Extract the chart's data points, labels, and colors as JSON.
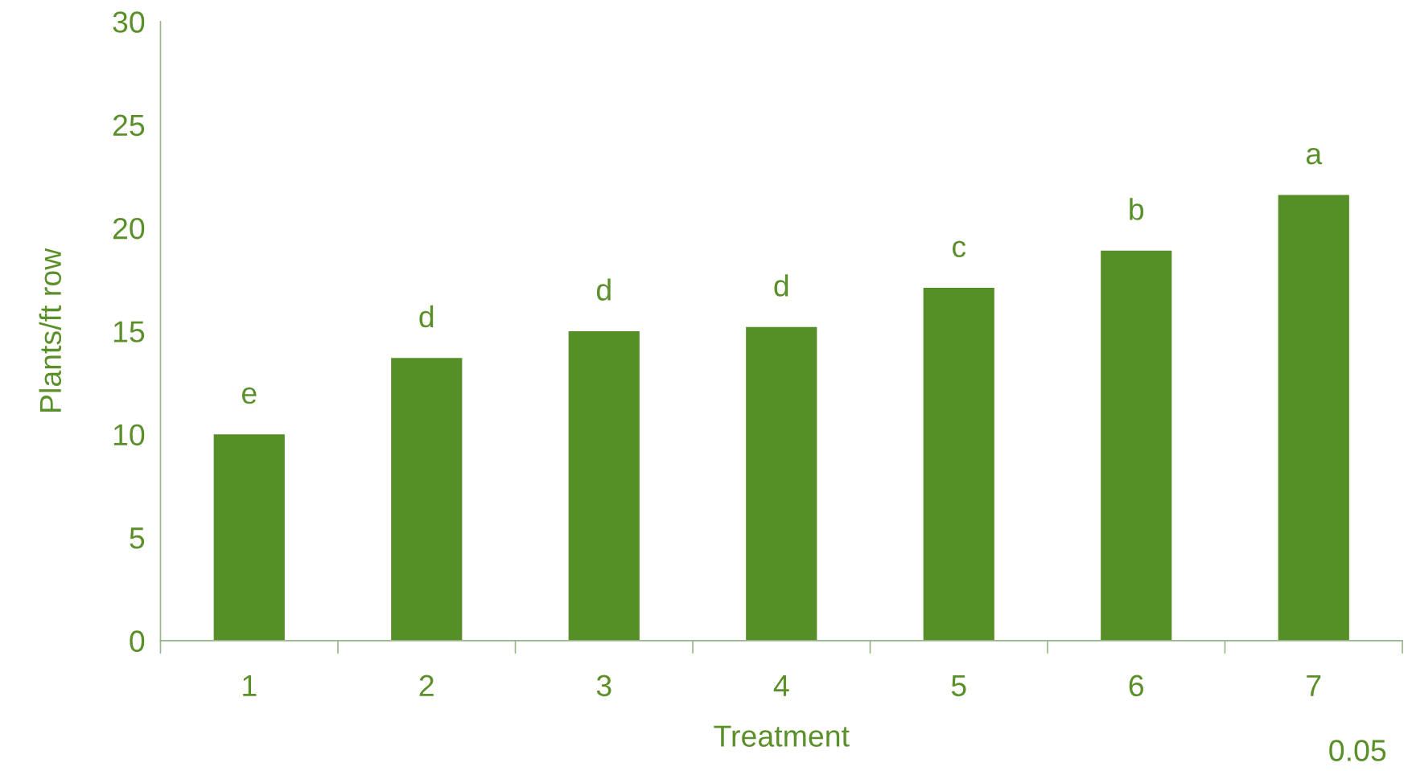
{
  "chart_data": {
    "type": "bar",
    "xlabel": "Treatment",
    "ylabel": "Plants/ft row",
    "categories": [
      "1",
      "2",
      "3",
      "4",
      "5",
      "6",
      "7"
    ],
    "values": [
      10.0,
      13.7,
      15.0,
      15.2,
      17.1,
      18.9,
      21.6
    ],
    "color": "#568f27",
    "ylim": [
      0,
      30
    ],
    "yticks": [
      0,
      5,
      10,
      15,
      20,
      25,
      30
    ],
    "grid": false,
    "legend": false,
    "annotations": [
      {
        "text": "e",
        "x": "1",
        "y": 10.0
      },
      {
        "text": "d",
        "x": "2",
        "y": 13.7
      },
      {
        "text": "d",
        "x": "3",
        "y": 15.0
      },
      {
        "text": "d",
        "x": "4",
        "y": 15.2
      },
      {
        "text": "c",
        "x": "5",
        "y": 17.1
      },
      {
        "text": "b",
        "x": "6",
        "y": 18.9
      },
      {
        "text": "a",
        "x": "7",
        "y": 21.6
      },
      "0.05"
    ]
  }
}
